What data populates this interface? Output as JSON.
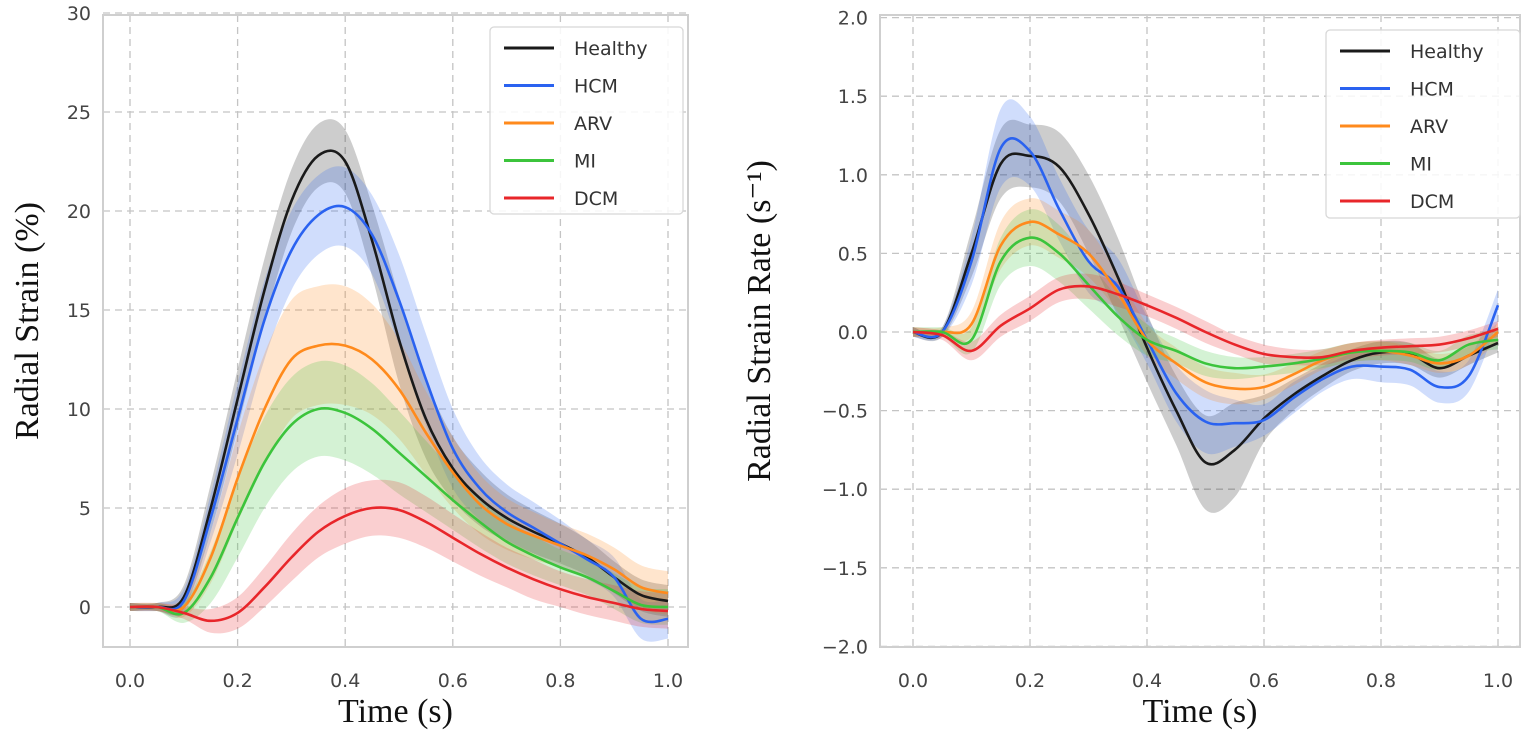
{
  "chart_data": [
    {
      "type": "line",
      "title": "",
      "xlabel": "Time (s)",
      "ylabel": "Radial Strain (%)",
      "xlim": [
        -0.05,
        1.04
      ],
      "ylim": [
        -2,
        30
      ],
      "xticks": [
        "0.0",
        "0.2",
        "0.4",
        "0.6",
        "0.8",
        "1.0"
      ],
      "yticks": [
        "0",
        "5",
        "10",
        "15",
        "20",
        "25",
        "30"
      ],
      "grid": true,
      "legend_position": "top-right",
      "x": [
        0,
        0.05,
        0.1,
        0.15,
        0.2,
        0.25,
        0.3,
        0.35,
        0.4,
        0.45,
        0.5,
        0.55,
        0.6,
        0.65,
        0.7,
        0.75,
        0.8,
        0.85,
        0.9,
        0.95,
        1.0
      ],
      "series": [
        {
          "name": "Healthy",
          "color": "#1a1a1a",
          "values": [
            0,
            0,
            0.5,
            5,
            10.5,
            16,
            20.5,
            22.8,
            22.5,
            18.5,
            13.5,
            9.5,
            7,
            5.5,
            4.5,
            3.8,
            3.2,
            2.5,
            1.5,
            0.6,
            0.3
          ],
          "spread": [
            0.2,
            0.2,
            0.6,
            1.2,
            1.5,
            1.6,
            1.6,
            1.6,
            1.6,
            1.8,
            2.2,
            2,
            1.6,
            1.4,
            1.2,
            1.1,
            1,
            0.9,
            0.8,
            0.8,
            0.8
          ]
        },
        {
          "name": "HCM",
          "color": "#2a62f0",
          "values": [
            0,
            0,
            0.3,
            4.5,
            9.5,
            14.5,
            18,
            19.8,
            20.2,
            18.8,
            15.5,
            11.5,
            8,
            6,
            4.8,
            4,
            3.2,
            2.4,
            1.5,
            -0.6,
            -0.6
          ],
          "spread": [
            0.2,
            0.2,
            0.6,
            1.2,
            1.8,
            2,
            2,
            2,
            2,
            2,
            2.3,
            2.3,
            2,
            1.6,
            1.4,
            1.3,
            1.2,
            1,
            1,
            1,
            1
          ]
        },
        {
          "name": "ARV",
          "color": "#ff8a1c",
          "values": [
            0,
            0,
            0,
            2.5,
            6.5,
            10,
            12.5,
            13.2,
            13.2,
            12.5,
            11,
            8.8,
            6.8,
            5.2,
            4.2,
            3.6,
            3.1,
            2.6,
            1.9,
            1.0,
            0.7
          ],
          "spread": [
            0.2,
            0.2,
            0.5,
            1.3,
            2.2,
            2.8,
            3,
            3,
            3,
            2.8,
            2.5,
            2.1,
            1.8,
            1.5,
            1.3,
            1.2,
            1.1,
            1.1,
            1.1,
            1.1,
            1.1
          ]
        },
        {
          "name": "MI",
          "color": "#3cc43c",
          "values": [
            0,
            0,
            -0.3,
            1.5,
            4.5,
            7.3,
            9.2,
            10,
            9.8,
            9,
            7.8,
            6.6,
            5.4,
            4.3,
            3.3,
            2.6,
            2.0,
            1.5,
            0.8,
            0.1,
            0
          ],
          "spread": [
            0.2,
            0.2,
            0.5,
            1.3,
            2,
            2.3,
            2.4,
            2.4,
            2.4,
            2.3,
            2.1,
            1.8,
            1.5,
            1.3,
            1.1,
            1,
            0.9,
            0.9,
            0.9,
            0.9,
            0.9
          ]
        },
        {
          "name": "DCM",
          "color": "#e8262a",
          "values": [
            0,
            0,
            -0.3,
            -0.7,
            -0.3,
            1,
            2.5,
            3.8,
            4.6,
            5,
            4.9,
            4.3,
            3.5,
            2.7,
            2,
            1.4,
            0.9,
            0.5,
            0.2,
            -0.1,
            -0.2
          ],
          "spread": [
            0.2,
            0.2,
            0.3,
            0.6,
            0.8,
            1,
            1.2,
            1.3,
            1.4,
            1.4,
            1.4,
            1.3,
            1.2,
            1.1,
            1,
            1,
            0.9,
            0.9,
            0.9,
            0.9,
            0.9
          ]
        }
      ]
    },
    {
      "type": "line",
      "title": "",
      "xlabel": "Time (s)",
      "ylabel": "Radial Strain Rate (s⁻¹)",
      "xlim": [
        -0.055,
        1.04
      ],
      "ylim": [
        -2.0,
        2.0
      ],
      "xticks": [
        "0.0",
        "0.2",
        "0.4",
        "0.6",
        "0.8",
        "1.0"
      ],
      "yticks": [
        "−2.0",
        "−1.5",
        "−1.0",
        "−0.5",
        "0.0",
        "0.5",
        "1.0",
        "1.5",
        "2.0"
      ],
      "grid": true,
      "legend_position": "top-right",
      "x": [
        0,
        0.05,
        0.1,
        0.15,
        0.2,
        0.25,
        0.3,
        0.35,
        0.4,
        0.45,
        0.5,
        0.55,
        0.6,
        0.65,
        0.7,
        0.75,
        0.8,
        0.85,
        0.9,
        0.95,
        1.0
      ],
      "series": [
        {
          "name": "Healthy",
          "color": "#1a1a1a",
          "values": [
            0,
            0,
            0.5,
            1.07,
            1.12,
            1.05,
            0.75,
            0.35,
            -0.1,
            -0.5,
            -0.83,
            -0.75,
            -0.55,
            -0.4,
            -0.28,
            -0.18,
            -0.13,
            -0.14,
            -0.23,
            -0.15,
            -0.07
          ],
          "spread": [
            0.03,
            0.03,
            0.15,
            0.22,
            0.2,
            0.22,
            0.25,
            0.25,
            0.22,
            0.22,
            0.3,
            0.3,
            0.15,
            0.1,
            0.08,
            0.07,
            0.07,
            0.07,
            0.06,
            0.06,
            0.06
          ]
        },
        {
          "name": "HCM",
          "color": "#2a62f0",
          "values": [
            0,
            0,
            0.45,
            1.17,
            1.15,
            0.78,
            0.45,
            0.29,
            -0.05,
            -0.39,
            -0.57,
            -0.58,
            -0.56,
            -0.42,
            -0.3,
            -0.22,
            -0.22,
            -0.24,
            -0.35,
            -0.28,
            0.17
          ],
          "spread": [
            0.03,
            0.03,
            0.15,
            0.25,
            0.22,
            0.2,
            0.2,
            0.18,
            0.15,
            0.18,
            0.2,
            0.15,
            0.1,
            0.1,
            0.08,
            0.08,
            0.1,
            0.1,
            0.1,
            0.1,
            0.1
          ]
        },
        {
          "name": "ARV",
          "color": "#ff8a1c",
          "values": [
            0,
            0,
            0.05,
            0.55,
            0.7,
            0.62,
            0.5,
            0.25,
            -0.05,
            -0.2,
            -0.32,
            -0.36,
            -0.35,
            -0.27,
            -0.18,
            -0.13,
            -0.12,
            -0.15,
            -0.2,
            -0.15,
            0
          ],
          "spread": [
            0.03,
            0.03,
            0.08,
            0.15,
            0.15,
            0.15,
            0.15,
            0.12,
            0.1,
            0.1,
            0.1,
            0.1,
            0.08,
            0.07,
            0.06,
            0.06,
            0.06,
            0.06,
            0.06,
            0.06,
            0.06
          ]
        },
        {
          "name": "MI",
          "color": "#3cc43c",
          "values": [
            0,
            0,
            -0.05,
            0.45,
            0.6,
            0.5,
            0.3,
            0.1,
            -0.05,
            -0.12,
            -0.2,
            -0.23,
            -0.22,
            -0.2,
            -0.17,
            -0.13,
            -0.12,
            -0.13,
            -0.18,
            -0.08,
            -0.05
          ],
          "spread": [
            0.03,
            0.03,
            0.08,
            0.15,
            0.18,
            0.18,
            0.15,
            0.12,
            0.1,
            0.08,
            0.08,
            0.07,
            0.06,
            0.06,
            0.06,
            0.06,
            0.06,
            0.06,
            0.06,
            0.06,
            0.06
          ]
        },
        {
          "name": "DCM",
          "color": "#e8262a",
          "values": [
            0,
            -0.02,
            -0.12,
            0.04,
            0.15,
            0.27,
            0.29,
            0.24,
            0.17,
            0.09,
            0,
            -0.08,
            -0.14,
            -0.16,
            -0.16,
            -0.12,
            -0.1,
            -0.09,
            -0.08,
            -0.04,
            0.02
          ],
          "spread": [
            0.03,
            0.03,
            0.06,
            0.07,
            0.08,
            0.08,
            0.08,
            0.08,
            0.07,
            0.07,
            0.07,
            0.06,
            0.06,
            0.05,
            0.05,
            0.05,
            0.05,
            0.05,
            0.05,
            0.05,
            0.05
          ]
        }
      ]
    }
  ]
}
